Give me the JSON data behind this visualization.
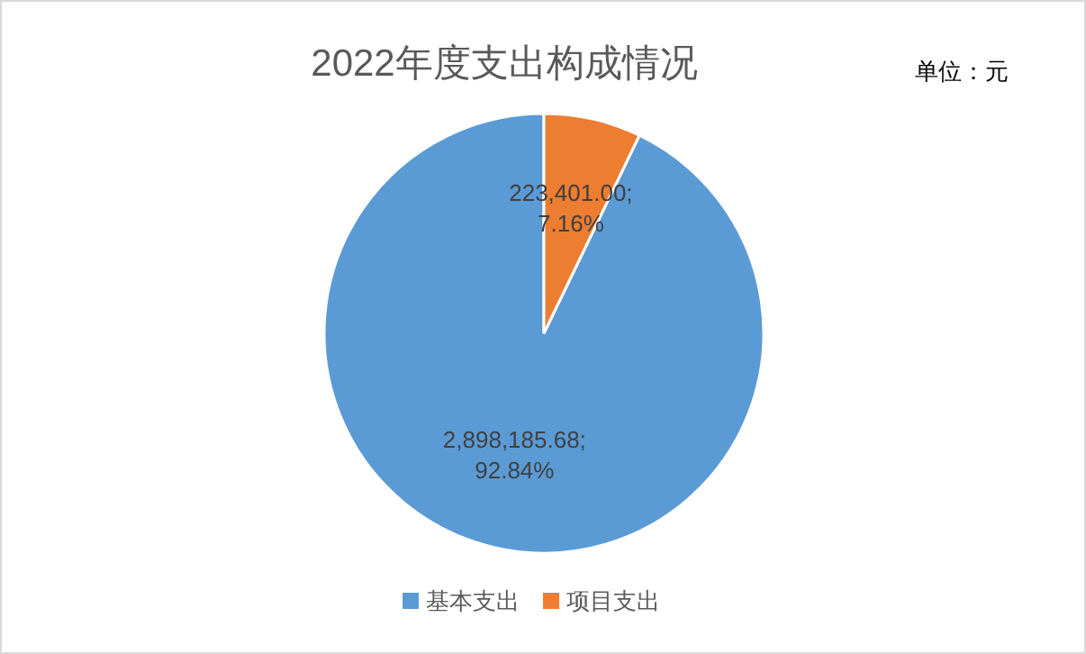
{
  "chart_data": {
    "type": "pie",
    "title": "2022年度支出构成情况",
    "annotations": [
      "单位：元"
    ],
    "categories": [
      "基本支出",
      "项目支出"
    ],
    "values": [
      2898185.68,
      223401.0
    ],
    "colors": [
      "#5b9bd5",
      "#ed7d31"
    ],
    "value_labels": [
      "2,898,185.68; 92.84%",
      "223,401.00; 7.16%"
    ],
    "legend": "bottom"
  }
}
